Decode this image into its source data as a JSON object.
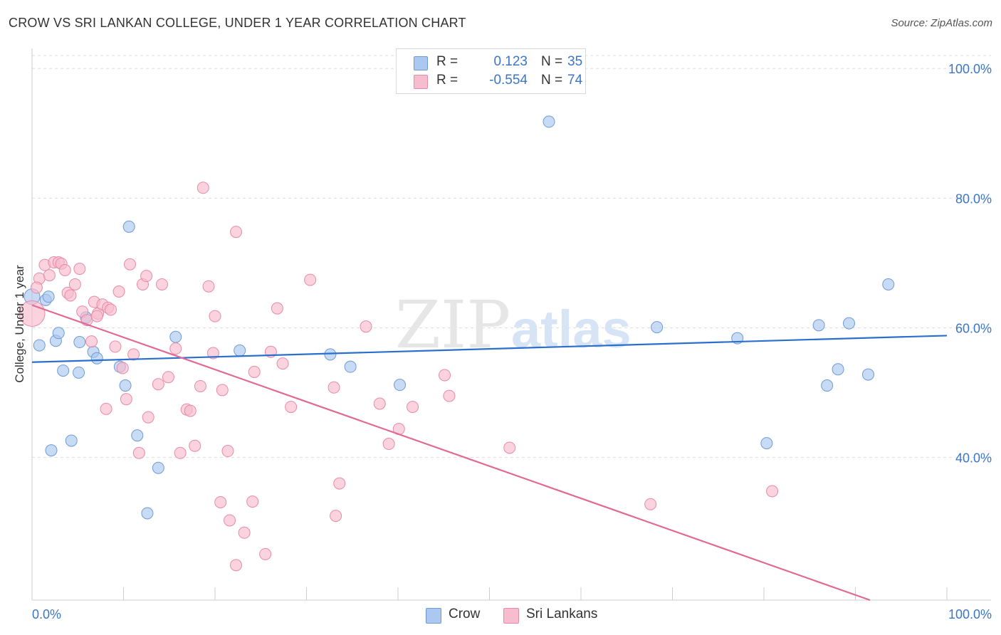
{
  "title": "CROW VS SRI LANKAN COLLEGE, UNDER 1 YEAR CORRELATION CHART",
  "source": "Source: ZipAtlas.com",
  "watermark": {
    "zip": "ZIP",
    "atlas": "atlas"
  },
  "legend_top": [
    {
      "r_label": "R =",
      "r_value": "0.123",
      "n_label": "N =",
      "n_value": "35",
      "color": "#aac8f0"
    },
    {
      "r_label": "R =",
      "r_value": "-0.554",
      "n_label": "N =",
      "n_value": "74",
      "color": "#f5b6c8"
    }
  ],
  "legend_bottom": [
    {
      "label": "Crow",
      "color": "#aac8f0"
    },
    {
      "label": "Sri Lankans",
      "color": "#f5b6c8"
    }
  ],
  "colors": {
    "crow_fill": "#aac8f0",
    "crow_stroke": "#6f9ad6",
    "crow_line": "#2a6fcd",
    "sri_fill": "#f7bccd",
    "sri_stroke": "#e88aa8",
    "sri_line": "#e06a93",
    "axis_text": "#3a76c8",
    "grid": "#dddddd"
  },
  "chart_data": {
    "type": "scatter",
    "xlabel": "",
    "ylabel": "College, Under 1 year",
    "xlim": [
      0,
      100
    ],
    "ylim": [
      18,
      102
    ],
    "x_tick_labels": [
      {
        "value": 0,
        "label": "0.0%"
      },
      {
        "value": 100,
        "label": "100.0%"
      }
    ],
    "y_tick_labels": [
      {
        "value": 100,
        "label": "100.0%"
      },
      {
        "value": 80,
        "label": "80.0%"
      },
      {
        "value": 60,
        "label": "60.0%"
      },
      {
        "value": 40,
        "label": "40.0%"
      }
    ],
    "series": [
      {
        "name": "Crow",
        "trend": {
          "x": [
            0,
            100
          ],
          "y": [
            54.7,
            58.8
          ]
        },
        "points": [
          [
            0.0,
            64.8
          ],
          [
            0.8,
            57.3
          ],
          [
            1.5,
            64.3
          ],
          [
            1.8,
            64.8
          ],
          [
            2.1,
            41.1
          ],
          [
            2.6,
            58.0
          ],
          [
            2.9,
            59.2
          ],
          [
            3.4,
            53.4
          ],
          [
            4.3,
            42.6
          ],
          [
            5.1,
            53.1
          ],
          [
            5.2,
            57.8
          ],
          [
            5.9,
            61.6
          ],
          [
            6.7,
            56.3
          ],
          [
            7.1,
            55.3
          ],
          [
            9.6,
            54.0
          ],
          [
            10.2,
            51.1
          ],
          [
            10.6,
            75.6
          ],
          [
            11.5,
            43.4
          ],
          [
            12.6,
            31.4
          ],
          [
            13.8,
            38.4
          ],
          [
            15.7,
            58.6
          ],
          [
            22.7,
            56.5
          ],
          [
            32.6,
            55.9
          ],
          [
            34.8,
            54.0
          ],
          [
            40.2,
            51.2
          ],
          [
            56.5,
            91.8
          ],
          [
            68.3,
            60.1
          ],
          [
            77.1,
            58.4
          ],
          [
            80.3,
            42.2
          ],
          [
            86.0,
            60.4
          ],
          [
            86.9,
            51.1
          ],
          [
            88.1,
            53.6
          ],
          [
            89.3,
            60.7
          ],
          [
            91.4,
            52.8
          ],
          [
            93.6,
            66.7
          ]
        ]
      },
      {
        "name": "Sri Lankans",
        "trend": {
          "x": [
            0,
            91.6
          ],
          "y": [
            63.5,
            18.0
          ]
        },
        "points": [
          [
            0.0,
            62.2
          ],
          [
            0.8,
            67.6
          ],
          [
            1.4,
            69.7
          ],
          [
            1.9,
            68.1
          ],
          [
            2.4,
            70.1
          ],
          [
            2.9,
            70.1
          ],
          [
            3.2,
            69.9
          ],
          [
            3.6,
            68.9
          ],
          [
            3.9,
            65.4
          ],
          [
            4.2,
            65.0
          ],
          [
            4.7,
            66.7
          ],
          [
            5.2,
            69.1
          ],
          [
            5.5,
            62.5
          ],
          [
            6.0,
            61.2
          ],
          [
            6.5,
            57.9
          ],
          [
            6.8,
            64.0
          ],
          [
            7.2,
            62.2
          ],
          [
            7.7,
            63.6
          ],
          [
            8.1,
            47.5
          ],
          [
            8.3,
            63.1
          ],
          [
            8.6,
            62.8
          ],
          [
            9.1,
            57.1
          ],
          [
            9.5,
            65.6
          ],
          [
            9.9,
            53.8
          ],
          [
            10.3,
            49.0
          ],
          [
            10.7,
            69.8
          ],
          [
            11.1,
            55.9
          ],
          [
            11.7,
            40.7
          ],
          [
            12.1,
            66.7
          ],
          [
            12.5,
            68.0
          ],
          [
            12.7,
            46.2
          ],
          [
            13.8,
            51.3
          ],
          [
            14.2,
            66.7
          ],
          [
            14.9,
            52.4
          ],
          [
            15.7,
            56.8
          ],
          [
            16.2,
            40.7
          ],
          [
            16.9,
            47.4
          ],
          [
            17.3,
            47.2
          ],
          [
            17.8,
            41.8
          ],
          [
            18.4,
            51.0
          ],
          [
            18.7,
            81.6
          ],
          [
            19.3,
            66.4
          ],
          [
            19.8,
            56.1
          ],
          [
            20.0,
            61.8
          ],
          [
            20.6,
            33.1
          ],
          [
            20.8,
            50.4
          ],
          [
            21.4,
            41.0
          ],
          [
            21.6,
            30.3
          ],
          [
            22.3,
            74.8
          ],
          [
            23.2,
            28.4
          ],
          [
            24.1,
            33.2
          ],
          [
            24.3,
            53.2
          ],
          [
            25.5,
            25.1
          ],
          [
            26.1,
            56.3
          ],
          [
            26.8,
            63.0
          ],
          [
            27.4,
            54.5
          ],
          [
            28.3,
            47.8
          ],
          [
            30.4,
            67.4
          ],
          [
            33.0,
            50.8
          ],
          [
            33.2,
            31.0
          ],
          [
            33.6,
            36.0
          ],
          [
            36.5,
            60.2
          ],
          [
            38.0,
            48.3
          ],
          [
            39.0,
            42.1
          ],
          [
            40.1,
            44.4
          ],
          [
            41.6,
            47.8
          ],
          [
            45.1,
            52.7
          ],
          [
            45.6,
            49.5
          ],
          [
            52.2,
            41.5
          ],
          [
            67.6,
            32.8
          ],
          [
            80.9,
            34.8
          ],
          [
            22.3,
            23.4
          ],
          [
            0.5,
            66.2
          ],
          [
            7.1,
            61.8
          ]
        ]
      }
    ]
  }
}
